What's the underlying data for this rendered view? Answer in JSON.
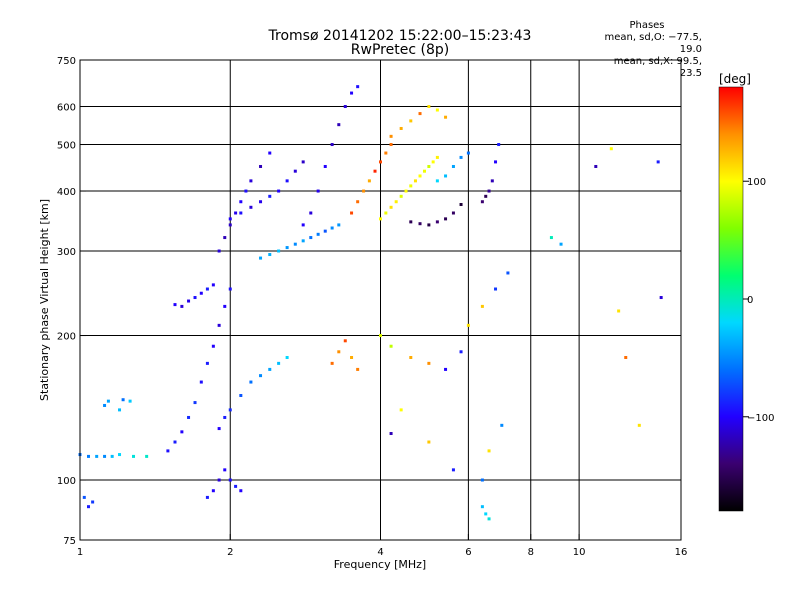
{
  "header": {
    "title_line1": "Tromsø 20141202 15:22:00–15:23:43",
    "title_line2": "RwPretec (8p)"
  },
  "phases_box": {
    "heading": "Phases",
    "line_o": "mean, sd,O: −77.5, 19.0",
    "line_x": "mean, sd,X:  99.5, 23.5"
  },
  "colorbar": {
    "unit_label": "[deg]",
    "ticks": [
      "100",
      "0",
      "−100"
    ],
    "tick_values": [
      100,
      0,
      -100
    ],
    "range": [
      -180,
      180
    ],
    "colors": [
      "#000000",
      "#3a0070",
      "#2200ff",
      "#0070ff",
      "#00d8ff",
      "#00ff70",
      "#80ff00",
      "#ffff00",
      "#ff9000",
      "#ff0000"
    ]
  },
  "chart_data": {
    "type": "scatter",
    "xlabel": "Frequency [MHz]",
    "ylabel": "Stationary phase Virtual Height [km]",
    "xscale": "log",
    "yscale": "log",
    "xlim": [
      1,
      16
    ],
    "ylim": [
      75,
      750
    ],
    "x_ticks": [
      "1",
      "2",
      "4",
      "6",
      "8",
      "10",
      "16"
    ],
    "x_tick_values": [
      1,
      2,
      4,
      6,
      8,
      10,
      16
    ],
    "x_gridlines": [
      2,
      4,
      6,
      8,
      10
    ],
    "y_ticks": [
      "75",
      "100",
      "200",
      "300",
      "400",
      "500",
      "600",
      "750"
    ],
    "y_tick_values": [
      75,
      100,
      200,
      300,
      400,
      500,
      600,
      750
    ],
    "y_gridlines": [
      100,
      200,
      300,
      400,
      500,
      600
    ],
    "color_scale": "phase [deg]",
    "series": [
      {
        "x": [
          1.0,
          1.04,
          1.08,
          1.12,
          1.16,
          1.2,
          1.28,
          1.36
        ],
        "y": [
          113,
          112,
          112,
          112,
          112,
          113,
          112,
          112
        ],
        "phase": [
          -60,
          -55,
          -40,
          -50,
          -30,
          -20,
          -10,
          -5
        ]
      },
      {
        "x": [
          1.12,
          1.14,
          1.2,
          1.26,
          1.22
        ],
        "y": [
          143,
          146,
          140,
          146,
          147
        ],
        "phase": [
          -50,
          -40,
          -30,
          -25,
          -60
        ]
      },
      {
        "x": [
          1.04,
          1.06,
          1.02
        ],
        "y": [
          88,
          90,
          92
        ],
        "phase": [
          -90,
          -80,
          -70
        ]
      },
      {
        "x": [
          1.5,
          1.55,
          1.6,
          1.65,
          1.7,
          1.75,
          1.8,
          1.85,
          1.9,
          1.95,
          2.0
        ],
        "y": [
          115,
          120,
          126,
          135,
          145,
          160,
          175,
          190,
          210,
          230,
          250
        ],
        "phase": [
          -95,
          -90,
          -100,
          -85,
          -80,
          -95,
          -90,
          -100,
          -110,
          -100,
          -95
        ]
      },
      {
        "x": [
          1.55,
          1.6,
          1.65,
          1.7,
          1.75,
          1.8,
          1.85
        ],
        "y": [
          232,
          230,
          236,
          240,
          245,
          250,
          255
        ],
        "phase": [
          -100,
          -110,
          -105,
          -95,
          -100,
          -90,
          -100
        ]
      },
      {
        "x": [
          1.8,
          1.85,
          1.9,
          1.95,
          2.0,
          2.05,
          2.1
        ],
        "y": [
          92,
          95,
          100,
          105,
          100,
          97,
          95
        ],
        "phase": [
          -90,
          -100,
          -110,
          -100,
          -95,
          -90,
          -100
        ]
      },
      {
        "x": [
          1.9,
          1.95,
          2.0,
          2.1,
          2.2,
          2.3,
          2.4,
          2.5,
          2.6
        ],
        "y": [
          128,
          135,
          140,
          150,
          160,
          165,
          170,
          175,
          180
        ],
        "phase": [
          -100,
          -90,
          -85,
          -70,
          -60,
          -50,
          -40,
          -30,
          -20
        ]
      },
      {
        "x": [
          1.9,
          1.95,
          2.0,
          2.05,
          2.1,
          2.15,
          2.2,
          2.3,
          2.4
        ],
        "y": [
          300,
          320,
          340,
          360,
          380,
          400,
          420,
          450,
          480
        ],
        "phase": [
          -110,
          -120,
          -115,
          -105,
          -100,
          -95,
          -110,
          -120,
          -100
        ]
      },
      {
        "x": [
          2.0,
          2.1,
          2.2,
          2.3,
          2.4,
          2.5,
          2.6,
          2.7,
          2.8
        ],
        "y": [
          350,
          360,
          370,
          380,
          390,
          400,
          420,
          440,
          460
        ],
        "phase": [
          -100,
          -95,
          -110,
          -105,
          -90,
          -100,
          -95,
          -110,
          -115
        ]
      },
      {
        "x": [
          2.3,
          2.4,
          2.5,
          2.6,
          2.7,
          2.8,
          2.9,
          3.0,
          3.1,
          3.2,
          3.3
        ],
        "y": [
          290,
          295,
          300,
          305,
          310,
          315,
          320,
          325,
          330,
          335,
          340
        ],
        "phase": [
          -40,
          -35,
          -30,
          -45,
          -50,
          -40,
          -60,
          -55,
          -70,
          -50,
          -45
        ]
      },
      {
        "x": [
          2.8,
          2.9,
          3.0,
          3.1,
          3.2,
          3.3,
          3.4,
          3.5,
          3.6
        ],
        "y": [
          340,
          360,
          400,
          450,
          500,
          550,
          600,
          640,
          660
        ],
        "phase": [
          -100,
          -110,
          -105,
          -100,
          -115,
          -120,
          -110,
          -100,
          -95
        ]
      },
      {
        "x": [
          3.5,
          3.6,
          3.7,
          3.8,
          3.9,
          4.0,
          4.1,
          4.2
        ],
        "y": [
          360,
          380,
          400,
          420,
          440,
          460,
          480,
          500
        ],
        "phase": [
          160,
          150,
          140,
          130,
          170,
          160,
          145,
          150
        ]
      },
      {
        "x": [
          4.0,
          4.1,
          4.2,
          4.3,
          4.4,
          4.5,
          4.6,
          4.7,
          4.8,
          4.9,
          5.0,
          5.1,
          5.2
        ],
        "y": [
          350,
          360,
          370,
          380,
          390,
          400,
          410,
          420,
          430,
          440,
          450,
          460,
          470
        ],
        "phase": [
          100,
          95,
          110,
          105,
          90,
          100,
          95,
          110,
          100,
          95,
          85,
          100,
          105
        ]
      },
      {
        "x": [
          4.2,
          4.4,
          4.6,
          4.8,
          5.0,
          5.2,
          5.4
        ],
        "y": [
          520,
          540,
          560,
          580,
          600,
          590,
          570
        ],
        "phase": [
          140,
          130,
          120,
          150,
          110,
          100,
          130
        ]
      },
      {
        "x": [
          4.6,
          4.8,
          5.0,
          5.2,
          5.4,
          5.6,
          5.8
        ],
        "y": [
          345,
          342,
          340,
          345,
          350,
          360,
          375
        ],
        "phase": [
          -150,
          -145,
          -155,
          -140,
          -150,
          -145,
          -160
        ]
      },
      {
        "x": [
          5.2,
          5.4,
          5.6,
          5.8,
          6.0
        ],
        "y": [
          420,
          430,
          450,
          470,
          480
        ],
        "phase": [
          -20,
          -30,
          -40,
          -50,
          -60
        ]
      },
      {
        "x": [
          6.4,
          6.5,
          6.6,
          6.7,
          6.8,
          6.9
        ],
        "y": [
          380,
          390,
          400,
          420,
          460,
          500
        ],
        "phase": [
          -140,
          -150,
          -130,
          -120,
          -100,
          -90
        ]
      },
      {
        "x": [
          3.2,
          3.3,
          3.4,
          3.5,
          3.6
        ],
        "y": [
          175,
          185,
          195,
          180,
          170
        ],
        "phase": [
          150,
          140,
          160,
          130,
          145
        ]
      },
      {
        "x": [
          4.0,
          4.2,
          4.6,
          5.0,
          5.4,
          5.8,
          6.0,
          6.4,
          6.8,
          7.2
        ],
        "y": [
          200,
          190,
          180,
          175,
          170,
          185,
          210,
          230,
          250,
          270
        ],
        "phase": [
          90,
          80,
          130,
          140,
          -100,
          -90,
          110,
          120,
          -80,
          -70
        ]
      },
      {
        "x": [
          4.2,
          4.4,
          5.0,
          5.6,
          6.4,
          6.6,
          7.0
        ],
        "y": [
          125,
          140,
          120,
          105,
          100,
          115,
          130
        ],
        "phase": [
          -120,
          100,
          120,
          -90,
          -60,
          110,
          -50
        ]
      },
      {
        "x": [
          6.4,
          6.5,
          6.6
        ],
        "y": [
          88,
          85,
          83
        ],
        "phase": [
          -30,
          -20,
          -10
        ]
      },
      {
        "x": [
          8.8,
          9.2,
          10.8,
          11.6,
          12.0,
          12.4,
          13.2,
          14.4,
          14.6
        ],
        "y": [
          320,
          310,
          450,
          490,
          225,
          180,
          130,
          460,
          240
        ],
        "phase": [
          0,
          -40,
          -120,
          100,
          110,
          150,
          110,
          -90,
          -110
        ]
      }
    ]
  }
}
